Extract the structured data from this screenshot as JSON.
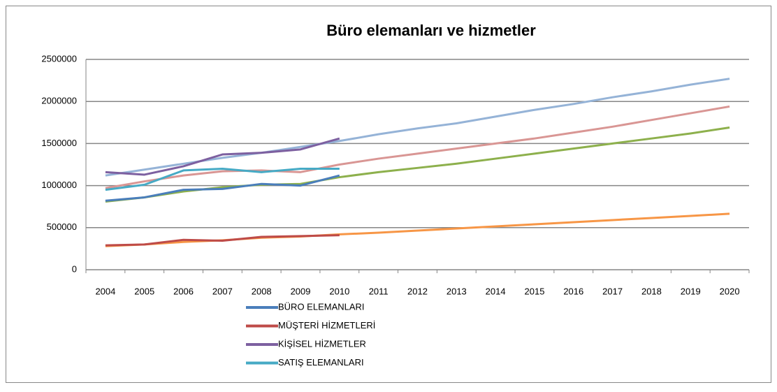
{
  "chart_data": {
    "type": "line",
    "title": "Büro elemanları ve hizmetler",
    "categories": [
      "2004",
      "2005",
      "2006",
      "2007",
      "2008",
      "2009",
      "2010",
      "2011",
      "2012",
      "2013",
      "2014",
      "2015",
      "2016",
      "2017",
      "2018",
      "2019",
      "2020"
    ],
    "series": [
      {
        "color": "#95b3d7",
        "values": [
          1120000,
          1190000,
          1260000,
          1330000,
          1390000,
          1460000,
          1530000,
          1610000,
          1680000,
          1740000,
          1820000,
          1900000,
          1970000,
          2050000,
          2120000,
          2200000,
          2270000
        ]
      },
      {
        "color": "#d99694",
        "values": [
          970000,
          1050000,
          1120000,
          1170000,
          1180000,
          1160000,
          1250000,
          1320000,
          1380000,
          1440000,
          1500000,
          1560000,
          1630000,
          1700000,
          1780000,
          1860000,
          1940000
        ]
      },
      {
        "color": "#8db04c",
        "values": [
          810000,
          860000,
          930000,
          980000,
          1010000,
          1020000,
          1100000,
          1160000,
          1210000,
          1260000,
          1320000,
          1380000,
          1440000,
          1500000,
          1560000,
          1620000,
          1690000
        ]
      },
      {
        "color": "#f79646",
        "values": [
          280000,
          300000,
          330000,
          350000,
          380000,
          395000,
          420000,
          440000,
          465000,
          490000,
          515000,
          540000,
          565000,
          590000,
          615000,
          640000,
          665000
        ]
      },
      {
        "name": "BÜRO ELEMANLARI",
        "color": "#4a7ebb",
        "values": [
          820000,
          860000,
          950000,
          960000,
          1020000,
          1000000,
          1120000,
          null,
          null,
          null,
          null,
          null,
          null,
          null,
          null,
          null,
          null
        ]
      },
      {
        "name": "MÜŞTERİ HİZMETLERİ",
        "color": "#be4b48",
        "values": [
          290000,
          300000,
          355000,
          345000,
          390000,
          400000,
          410000,
          null,
          null,
          null,
          null,
          null,
          null,
          null,
          null,
          null,
          null
        ]
      },
      {
        "name": "KİŞİSEL HİZMETLER",
        "color": "#7d60a0",
        "values": [
          1160000,
          1130000,
          1230000,
          1370000,
          1390000,
          1430000,
          1560000,
          null,
          null,
          null,
          null,
          null,
          null,
          null,
          null,
          null,
          null
        ]
      },
      {
        "name": "SATIŞ ELEMANLARI",
        "color": "#46aac5",
        "values": [
          950000,
          1010000,
          1180000,
          1200000,
          1160000,
          1200000,
          1200000,
          null,
          null,
          null,
          null,
          null,
          null,
          null,
          null,
          null,
          null
        ]
      }
    ],
    "ylim": [
      0,
      2500000
    ],
    "yticks": [
      0,
      500000,
      1000000,
      1500000,
      2000000,
      2500000
    ],
    "grid": true,
    "legend": "bottom"
  }
}
